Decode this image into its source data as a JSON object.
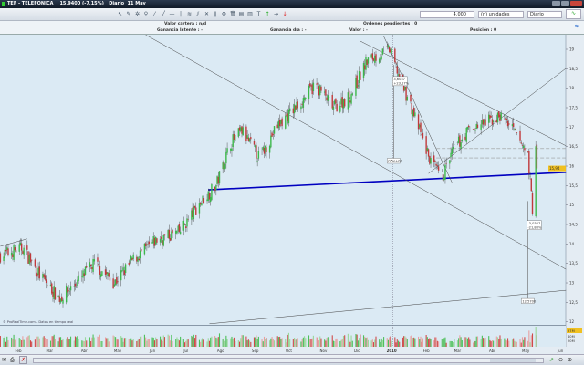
{
  "window": {
    "title": "TEF - TELEFONICA",
    "price": "15,9400 (-7,15%)",
    "period": "Diario",
    "date": "11 May"
  },
  "toolbar": {
    "tools": [
      "cursor-icon",
      "pencil-icon",
      "star-icon",
      "zoom-icon",
      "line-icon",
      "trendline-icon",
      "horizontal-line-icon",
      "vertical-line-icon",
      "fibonacci-icon",
      "channel-icon",
      "cross-icon",
      "parallel-icon",
      "settings-icon",
      "trash-icon",
      "indicator-icon",
      "indicator2-icon",
      "text-icon",
      "buy-arrow-icon",
      "right-arrow-icon",
      "sell-arrow-icon"
    ],
    "quantity": "4.000",
    "units": "(n) unidades",
    "period": "Diario"
  },
  "info": {
    "valor_cartera": "Valor cartera : n/d",
    "ordenes": "Ordenes pendientes : 0",
    "ganancia_latente": "Ganancia latente : -",
    "ganancia_dia": "Ganancia día : -",
    "valor": "Valor : -",
    "posicion": "Posición : 0"
  },
  "chart_data": {
    "type": "candlestick",
    "ylim": [
      12,
      19.33
    ],
    "y_ticks": [
      "19",
      "18,5",
      "18",
      "17,5",
      "17",
      "16,5",
      "16",
      "15,5",
      "15",
      "14,5",
      "14",
      "13,5",
      "13",
      "12,5",
      "12"
    ],
    "y_tick_values": [
      19,
      18.5,
      18,
      17.5,
      17,
      16.5,
      16,
      15.5,
      15,
      14.5,
      14,
      13.5,
      13,
      12.5,
      12
    ],
    "x_ticks": [
      [
        "2009-02-01",
        "Feb"
      ],
      [
        "2009-03-01",
        "Mar"
      ],
      [
        "2009-04-01",
        "Abr"
      ],
      [
        "2009-05-01",
        "May"
      ],
      [
        "2009-06-01",
        "Jun"
      ],
      [
        "2009-07-01",
        "Jul"
      ],
      [
        "2009-08-01",
        "Ago"
      ],
      [
        "2009-09-01",
        "Sep"
      ],
      [
        "2009-10-01",
        "Oct"
      ],
      [
        "2009-11-01",
        "Nov"
      ],
      [
        "2009-12-01",
        "Dic"
      ],
      [
        "2010-01-01",
        "2010"
      ],
      [
        "2010-02-01",
        "Feb"
      ],
      [
        "2010-03-01",
        "Mar"
      ],
      [
        "2010-04-01",
        "Abr"
      ],
      [
        "2010-05-01",
        "May"
      ],
      [
        "2010-06-01",
        "Jun"
      ]
    ],
    "close_path": [
      [
        "2009-01-16",
        13.7
      ],
      [
        "2009-02-05",
        13.9
      ],
      [
        "2009-02-20",
        13.2
      ],
      [
        "2009-03-10",
        12.6
      ],
      [
        "2009-03-25",
        13.0
      ],
      [
        "2009-04-10",
        13.5
      ],
      [
        "2009-04-28",
        13.0
      ],
      [
        "2009-05-15",
        13.6
      ],
      [
        "2009-06-05",
        14.1
      ],
      [
        "2009-06-25",
        14.3
      ],
      [
        "2009-07-15",
        15.1
      ],
      [
        "2009-07-28",
        15.5
      ],
      [
        "2009-08-10",
        16.6
      ],
      [
        "2009-08-20",
        16.9
      ],
      [
        "2009-09-05",
        16.2
      ],
      [
        "2009-09-20",
        17.0
      ],
      [
        "2009-10-10",
        17.6
      ],
      [
        "2009-10-25",
        18.1
      ],
      [
        "2009-11-10",
        17.5
      ],
      [
        "2009-11-25",
        17.8
      ],
      [
        "2009-12-10",
        18.7
      ],
      [
        "2009-12-30",
        19.0
      ],
      [
        "2010-01-08",
        18.3
      ],
      [
        "2010-01-20",
        17.4
      ],
      [
        "2010-02-05",
        16.1
      ],
      [
        "2010-02-15",
        15.7
      ],
      [
        "2010-02-25",
        16.4
      ],
      [
        "2010-03-10",
        16.9
      ],
      [
        "2010-03-25",
        17.1
      ],
      [
        "2010-04-10",
        17.3
      ],
      [
        "2010-04-20",
        16.9
      ],
      [
        "2010-05-03",
        16.3
      ],
      [
        "2010-05-07",
        14.9
      ],
      [
        "2010-05-10",
        16.6
      ],
      [
        "2010-05-11",
        15.94
      ]
    ],
    "last_price_label": "15,94",
    "trendlines": [
      {
        "from": [
          "2009-07-21",
          15.39
        ],
        "to": [
          "2010-06-06",
          15.84
        ],
        "color": "#0000c0",
        "width": "thick"
      },
      {
        "from": [
          "2009-05-26",
          19.37
        ],
        "to": [
          "2010-06-06",
          13.35
        ],
        "color": "#444"
      },
      {
        "from": [
          "2009-12-04",
          19.21
        ],
        "to": [
          "2010-06-06",
          16.52
        ],
        "color": "#444"
      },
      {
        "from": [
          "2009-12-25",
          19.33
        ],
        "to": [
          "2010-02-24",
          15.58
        ],
        "color": "#444"
      },
      {
        "from": [
          "2010-02-03",
          15.81
        ],
        "to": [
          "2010-06-06",
          18.51
        ],
        "color": "#444"
      },
      {
        "from": [
          "2009-07-22",
          11.95
        ],
        "to": [
          "2010-06-06",
          12.81
        ],
        "color": "#444"
      },
      {
        "from": [
          "2009-01-16",
          13.94
        ],
        "to": [
          "2009-02-09",
          14.13
        ],
        "color": "#444"
      }
    ],
    "dashed_levels": [
      16.45,
      16.21
    ],
    "annotations": [
      {
        "date": "2010-01-02",
        "price": 18.3,
        "lines": [
          "3,6037",
          "+23,17%"
        ]
      },
      {
        "date": "2010-01-02",
        "price": 16.2,
        "lines": [
          "0,5e+00"
        ]
      },
      {
        "date": "2010-05-02",
        "price": 14.6,
        "lines": [
          "-3,0367",
          "-21,88%"
        ]
      },
      {
        "date": "2010-05-02",
        "price": 12.6,
        "lines": [
          "12,5700"
        ]
      }
    ],
    "volume": {
      "ticks": [
        "40M",
        "20M"
      ],
      "last_label": "57M"
    },
    "copyright": "© ProRealTime.com - Datos en tiempo real"
  }
}
